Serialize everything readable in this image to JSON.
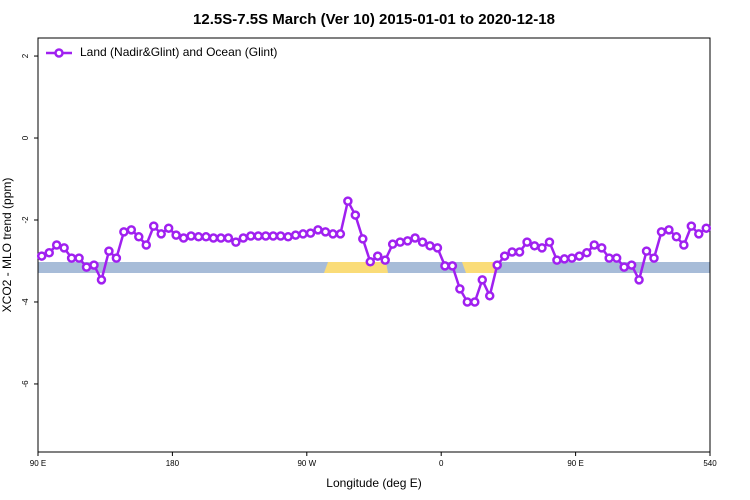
{
  "chart_data": {
    "type": "line",
    "title": "12.5S-7.5S March (Ver 10)   2015-01-01 to 2020-12-18",
    "x_label": "Longitude (deg E)",
    "y_label": "XCO2 - MLO trend (ppm)",
    "x": [
      92.5,
      97.5,
      102.5,
      107.5,
      112.5,
      117.5,
      122.5,
      127.5,
      132.5,
      137.5,
      142.5,
      147.5,
      152.5,
      157.5,
      162.5,
      167.5,
      172.5,
      177.5,
      182.5,
      187.5,
      192.5,
      197.5,
      202.5,
      207.5,
      212.5,
      217.5,
      222.5,
      227.5,
      232.5,
      237.5,
      242.5,
      247.5,
      252.5,
      257.5,
      262.5,
      267.5,
      272.5,
      277.5,
      282.5,
      287.5,
      292.5,
      297.5,
      302.5,
      307.5,
      312.5,
      317.5,
      322.5,
      327.5,
      332.5,
      337.5,
      342.5,
      347.5,
      352.5,
      357.5,
      362.5,
      367.5,
      372.5,
      377.5,
      382.5,
      387.5,
      392.5,
      397.5,
      402.5,
      407.5,
      412.5,
      417.5,
      422.5,
      427.5,
      432.5,
      437.5,
      442.5,
      447.5,
      452.5,
      457.5,
      462.5,
      467.5,
      472.5,
      477.5,
      482.5,
      487.5,
      492.5,
      497.5,
      502.5,
      507.5,
      512.5,
      517.5,
      522.5,
      527.5,
      532.5,
      537.5
    ],
    "series": [
      {
        "name": "Land (Nadir&Glint) and Ocean (Glint)",
        "color": "#a020f0",
        "values": [
          -2.88,
          -2.8,
          -2.61,
          -2.68,
          -2.93,
          -2.93,
          -3.15,
          -3.1,
          -3.46,
          -2.76,
          -2.93,
          -2.29,
          -2.24,
          -2.41,
          -2.61,
          -2.15,
          -2.34,
          -2.2,
          -2.37,
          -2.44,
          -2.39,
          -2.41,
          -2.41,
          -2.44,
          -2.44,
          -2.44,
          -2.54,
          -2.44,
          -2.39,
          -2.39,
          -2.39,
          -2.39,
          -2.39,
          -2.41,
          -2.37,
          -2.34,
          -2.32,
          -2.24,
          -2.29,
          -2.34,
          -2.34,
          -1.54,
          -1.88,
          -2.46,
          -3.02,
          -2.88,
          -2.98,
          -2.59,
          -2.54,
          -2.51,
          -2.44,
          -2.54,
          -2.63,
          -2.68,
          -3.12,
          -3.12,
          -3.68,
          -4.0,
          -4.0,
          -3.46,
          -3.85,
          -3.1,
          -2.88,
          -2.78,
          -2.78,
          -2.54,
          -2.63,
          -2.68,
          -2.54,
          -2.98,
          -2.95,
          -2.93,
          -2.88,
          -2.8,
          -2.61,
          -2.68,
          -2.93,
          -2.93,
          -3.15,
          -3.1,
          -3.46,
          -2.76,
          -2.93,
          -2.29,
          -2.24,
          -2.41,
          -2.61,
          -2.15,
          -2.34,
          -2.2
        ]
      }
    ],
    "xlim": [
      90,
      540
    ],
    "xticks": [
      {
        "value": 90,
        "label": "90 E"
      },
      180,
      {
        "value": 270,
        "label": "90 W"
      },
      {
        "value": 360,
        "label": "0"
      },
      {
        "value": 450,
        "label": "90 E"
      },
      540
    ],
    "ylim": [
      -7.66,
      2.44
    ],
    "yticks": [
      2,
      0,
      -2,
      -4,
      -6
    ],
    "legend": "top-left"
  }
}
